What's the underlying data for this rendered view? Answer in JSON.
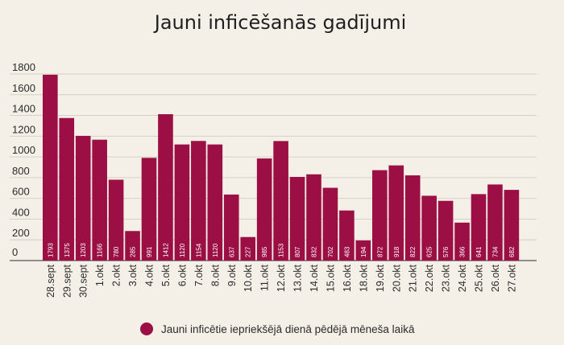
{
  "chart_data": {
    "type": "bar",
    "title": "Jauni inficēšanās gadījumi",
    "xlabel": "",
    "ylabel": "",
    "ylim": [
      0,
      1800
    ],
    "yticks": [
      0,
      200,
      400,
      600,
      800,
      1000,
      1200,
      1400,
      1600,
      1800
    ],
    "grid": true,
    "legend_position": "bottom-center",
    "bar_color": "#9b0f45",
    "series": [
      {
        "name": "Jauni inficētie iepriekšējā dienā pēdējā mēneša laikā",
        "values": [
          1793,
          1375,
          1203,
          1166,
          780,
          285,
          991,
          1412,
          1120,
          1154,
          1120,
          637,
          227,
          985,
          1153,
          807,
          832,
          702,
          483,
          194,
          872,
          918,
          822,
          625,
          576,
          366,
          641,
          734,
          682
        ]
      }
    ],
    "categories": [
      "28.sept",
      "29.sept",
      "30.sept",
      "1.okt",
      "2.okt",
      "3.okt",
      "4.okt",
      "5.okt",
      "6.okt",
      "7.okt",
      "8.okt",
      "9.okt",
      "10.okt",
      "11.okt",
      "12.okt",
      "13.okt",
      "14.okt",
      "15.okt",
      "16.okt",
      "18.okt",
      "19.okt",
      "20.okt",
      "21.okt",
      "22.okt",
      "23.okt",
      "24.okt",
      "25.okt",
      "26.okt",
      "27.okt"
    ]
  }
}
